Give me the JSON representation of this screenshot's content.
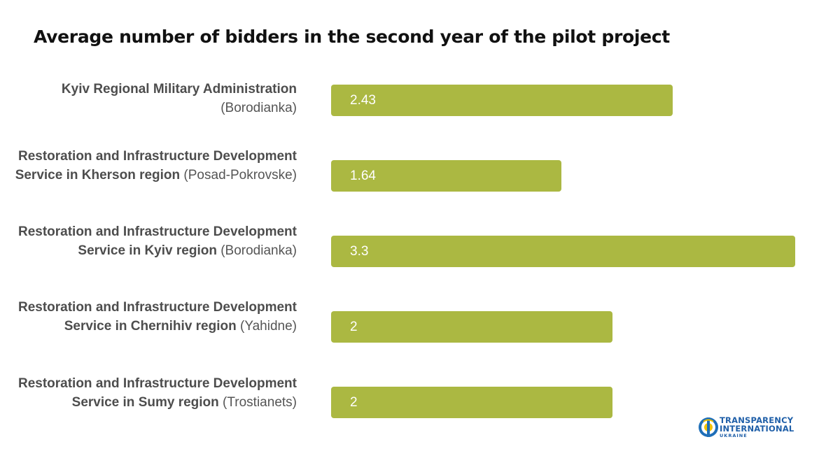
{
  "title": "Average number of bidders in the second year of the pilot project",
  "chart_data": {
    "type": "bar",
    "orientation": "horizontal",
    "title": "Average number of bidders in the second year of the pilot project",
    "categories": [
      {
        "strong": "Kyiv Regional Military Administration",
        "place": "(Borodianka)"
      },
      {
        "strong": "Restoration and Infrastructure Development Service in Kherson region",
        "place": "(Posad-Pokrovske)"
      },
      {
        "strong": "Restoration and Infrastructure Development Service in Kyiv region",
        "place": "(Borodianka)"
      },
      {
        "strong": "Restoration and Infrastructure Development Service in Chernihiv region",
        "place": "(Yahidne)"
      },
      {
        "strong": "Restoration and Infrastructure Development Service in Sumy region",
        "place": "(Trostianets)"
      }
    ],
    "values": [
      2.43,
      1.64,
      3.3,
      2,
      2
    ],
    "value_labels": [
      "2.43",
      "1.64",
      "3.3",
      "2",
      "2"
    ],
    "xlim": [
      0,
      3.3
    ],
    "grid": false,
    "bar_color": "#abb842"
  },
  "logo": {
    "line1": "TRANSPARENCY",
    "line2": "INTERNATIONAL",
    "line3": "UKRAINE"
  }
}
